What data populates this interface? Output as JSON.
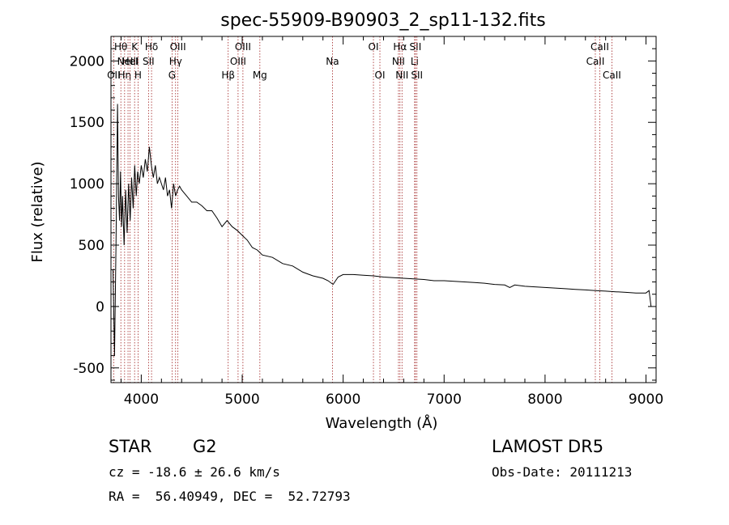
{
  "chart_data": {
    "type": "line",
    "title": "spec-55909-B90903_2_sp11-132.fits",
    "xlabel": "Wavelength (Å)",
    "ylabel": "Flux (relative)",
    "xlim": [
      3700,
      9100
    ],
    "ylim": [
      -620,
      2200
    ],
    "xticks": [
      4000,
      5000,
      6000,
      7000,
      8000,
      9000
    ],
    "yticks": [
      -500,
      0,
      500,
      1000,
      1500,
      2000
    ],
    "grid": false,
    "series": [
      {
        "x": [
          3720,
          3735,
          3750,
          3765,
          3775,
          3785,
          3795,
          3805,
          3815,
          3830,
          3845,
          3860,
          3875,
          3890,
          3905,
          3920,
          3935,
          3950,
          3965,
          3980,
          4000,
          4020,
          4040,
          4060,
          4080,
          4100,
          4120,
          4140,
          4160,
          4180,
          4200,
          4220,
          4240,
          4260,
          4280,
          4300,
          4320,
          4340,
          4360,
          4380,
          4400,
          4450,
          4500,
          4550,
          4600,
          4650,
          4700,
          4750,
          4800,
          4850,
          4900,
          4950,
          5000,
          5050,
          5100,
          5150,
          5200,
          5300,
          5400,
          5500,
          5600,
          5700,
          5800,
          5850,
          5900,
          5950,
          6000,
          6100,
          6200,
          6300,
          6400,
          6500,
          6600,
          6700,
          6800,
          6900,
          7000,
          7100,
          7200,
          7300,
          7400,
          7500,
          7600,
          7650,
          7700,
          7800,
          7900,
          8000,
          8100,
          8200,
          8300,
          8400,
          8500,
          8600,
          8700,
          8800,
          8900,
          9000,
          9030,
          9050
        ],
        "values": [
          300,
          -400,
          500,
          1650,
          900,
          700,
          1100,
          650,
          900,
          500,
          950,
          600,
          1000,
          700,
          1050,
          800,
          1150,
          900,
          1100,
          1000,
          1150,
          1050,
          1200,
          1100,
          1300,
          1150,
          1050,
          1150,
          1000,
          1050,
          1000,
          950,
          1050,
          900,
          950,
          800,
          1000,
          900,
          950,
          980,
          950,
          900,
          850,
          850,
          820,
          780,
          780,
          720,
          650,
          700,
          650,
          620,
          580,
          540,
          480,
          460,
          420,
          400,
          350,
          330,
          280,
          250,
          230,
          210,
          180,
          240,
          260,
          260,
          255,
          250,
          240,
          235,
          230,
          225,
          220,
          210,
          210,
          205,
          200,
          195,
          190,
          180,
          175,
          155,
          175,
          165,
          160,
          155,
          150,
          145,
          140,
          135,
          130,
          125,
          120,
          115,
          110,
          110,
          130,
          0
        ]
      }
    ],
    "lines": [
      {
        "wl": 3727,
        "label": "OII",
        "row": 3
      },
      {
        "wl": 3798,
        "label": "Hθ",
        "row": 1
      },
      {
        "wl": 3835,
        "label": "Hη",
        "row": 3
      },
      {
        "wl": 3869,
        "label": "NeIII",
        "row": 2
      },
      {
        "wl": 3889,
        "label": "HeI",
        "row": 2
      },
      {
        "wl": 3934,
        "label": "K",
        "row": 1
      },
      {
        "wl": 3968,
        "label": "H",
        "row": 3
      },
      {
        "wl": 4072,
        "label": "SII",
        "row": 2
      },
      {
        "wl": 4102,
        "label": "Hδ",
        "row": 1
      },
      {
        "wl": 4305,
        "label": "G",
        "row": 3
      },
      {
        "wl": 4340,
        "label": "Hγ",
        "row": 2
      },
      {
        "wl": 4363,
        "label": "OIII",
        "row": 1
      },
      {
        "wl": 4861,
        "label": "Hβ",
        "row": 3
      },
      {
        "wl": 4959,
        "label": "OIII",
        "row": 2
      },
      {
        "wl": 5007,
        "label": "OIII",
        "row": 1
      },
      {
        "wl": 5175,
        "label": "Mg",
        "row": 3
      },
      {
        "wl": 5894,
        "label": "Na",
        "row": 2
      },
      {
        "wl": 6300,
        "label": "OI",
        "row": 1
      },
      {
        "wl": 6364,
        "label": "OI",
        "row": 3
      },
      {
        "wl": 6548,
        "label": "NII",
        "row": 2
      },
      {
        "wl": 6563,
        "label": "Hα",
        "row": 1
      },
      {
        "wl": 6583,
        "label": "NII",
        "row": 3
      },
      {
        "wl": 6708,
        "label": "Li",
        "row": 2
      },
      {
        "wl": 6716,
        "label": "SII",
        "row": 1
      },
      {
        "wl": 6731,
        "label": "SII",
        "row": 3
      },
      {
        "wl": 8498,
        "label": "CaII",
        "row": 2
      },
      {
        "wl": 8542,
        "label": "CaII",
        "row": 1
      },
      {
        "wl": 8662,
        "label": "CaII",
        "row": 3
      }
    ]
  },
  "info": {
    "class": "STAR",
    "subclass": "G2",
    "survey": "LAMOST DR5",
    "cz": "cz = -18.6 ± 26.6 km/s",
    "obsdate": "Obs-Date: 20111213",
    "radec": "RA =  56.40949, DEC =  52.72793"
  }
}
